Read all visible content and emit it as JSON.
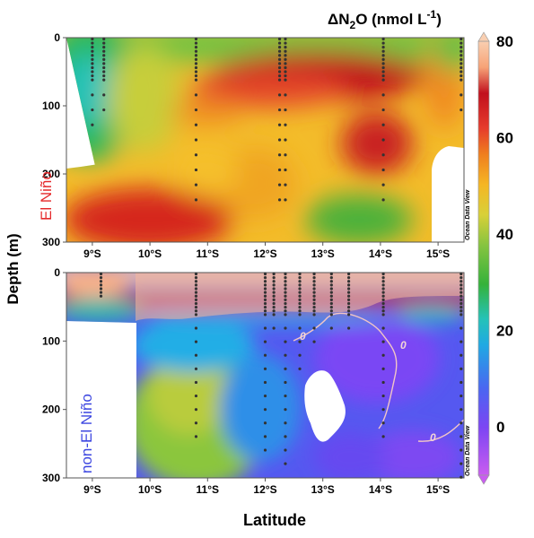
{
  "colorbar": {
    "title_prefix": "ΔN",
    "title_sub": "2",
    "title_mid": "O (nmol L",
    "title_sup": "-1",
    "title_suffix": ")",
    "ticks": [
      "80",
      "60",
      "40",
      "20",
      "0"
    ],
    "range": [
      -10,
      80
    ],
    "colors": [
      "#c95df0",
      "#7c45f3",
      "#4a66f1",
      "#1fa9e3",
      "#25c2b8",
      "#35b23a",
      "#86c440",
      "#d8d038",
      "#f5b623",
      "#ef7e1f",
      "#e63b2c",
      "#c1101d",
      "#f7a377",
      "#f9cfb1"
    ]
  },
  "axes": {
    "ylabel": "Depth (m)",
    "xlabel": "Latitude",
    "watermark": "Ocean Data View"
  },
  "chart_data": [
    {
      "type": "heatmap",
      "panel_label": "El Niño",
      "panel_label_color": "#e5292b",
      "x_ticks": [
        "9°S",
        "10°S",
        "11°S",
        "12°S",
        "13°S",
        "14°S",
        "15°S"
      ],
      "x_range_deg_south": [
        8.55,
        15.45
      ],
      "y_ticks": [
        "0",
        "100",
        "200",
        "300"
      ],
      "y_range_m": [
        0,
        300
      ],
      "contours": [],
      "station_latitudes": [
        9.0,
        9.2,
        10.8,
        12.25,
        12.35,
        14.05,
        15.4
      ],
      "values_summary": {
        "surface_0_50m": "20-55 (green-yellow), high near 12-15°S",
        "core_50_150m_12_14S": "65-75 (red)",
        "deep_200_300m_10_11S": "65-70 (red)",
        "deep_200_300m_13_14S": "35-45 (green)"
      }
    },
    {
      "type": "heatmap",
      "panel_label": "non-El Niño",
      "panel_label_color": "#3b45e0",
      "x_ticks": [
        "9°S",
        "10°S",
        "11°S",
        "12°S",
        "13°S",
        "14°S",
        "15°S"
      ],
      "x_range_deg_south": [
        8.55,
        15.45
      ],
      "y_ticks": [
        "0",
        "100",
        "200",
        "300"
      ],
      "y_range_m": [
        0,
        300
      ],
      "contours": [
        "0",
        "0",
        "0"
      ],
      "station_latitudes": [
        9.15,
        10.8,
        12.0,
        12.15,
        12.35,
        12.6,
        12.85,
        13.15,
        13.45,
        14.05,
        15.4
      ],
      "values_summary": {
        "surface_0_30m": "70-80 (peach)",
        "layer_30_60m": "60-70 (red)",
        "oxygen_deficient_core_100_250m_12_15S": "-5 to 5 (purple)",
        "deep_200_300m_10_11S": "40-50 (yellow-green)"
      }
    }
  ]
}
